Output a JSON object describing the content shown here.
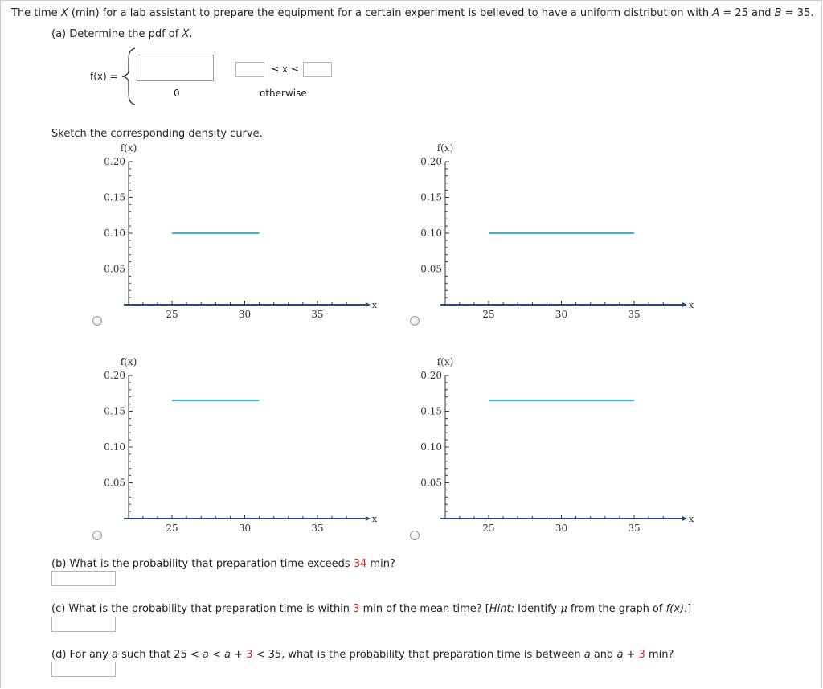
{
  "question": {
    "intro_a": "The time ",
    "intro_var": "X",
    "intro_b": " (min) for a lab assistant to prepare the equipment for a certain experiment is believed to have a uniform distribution with ",
    "intro_A": "A",
    "intro_c": " = 25 and ",
    "intro_B": "B",
    "intro_d": " = 35.",
    "part_a": "(a) Determine the pdf of ",
    "part_a_var": "X",
    "part_a_end": "."
  },
  "pdf": {
    "fx_label": "f(x)",
    "equals": " =",
    "ineq": "≤ x ≤",
    "zero": "0",
    "otherwise": "otherwise",
    "value_input": "",
    "lower_input": "",
    "upper_input": ""
  },
  "sketch_prompt": "Sketch the corresponding density curve.",
  "plots": [
    {
      "ylabel": "f(x)",
      "xlabel": "x",
      "yticks": [
        "0.20",
        "0.15",
        "0.10",
        "0.05"
      ],
      "xticks": [
        "25",
        "30",
        "35"
      ],
      "line_start": 25,
      "line_end": 31,
      "line_height": 0.1
    },
    {
      "ylabel": "f(x)",
      "xlabel": "x",
      "yticks": [
        "0.20",
        "0.15",
        "0.10",
        "0.05"
      ],
      "xticks": [
        "25",
        "30",
        "35"
      ],
      "line_start": 25,
      "line_end": 35,
      "line_height": 0.1
    },
    {
      "ylabel": "f(x)",
      "xlabel": "x",
      "yticks": [
        "0.20",
        "0.15",
        "0.10",
        "0.05"
      ],
      "xticks": [
        "25",
        "30",
        "35"
      ],
      "line_start": 25,
      "line_end": 31,
      "line_height": 0.165
    },
    {
      "ylabel": "f(x)",
      "xlabel": "x",
      "yticks": [
        "0.20",
        "0.15",
        "0.10",
        "0.05"
      ],
      "xticks": [
        "25",
        "30",
        "35"
      ],
      "line_start": 25,
      "line_end": 35,
      "line_height": 0.165
    }
  ],
  "part_b": {
    "a": "(b) What is the probability that preparation time exceeds ",
    "num": "34",
    "b": " min?",
    "answer": ""
  },
  "part_c": {
    "a": "(c) What is the probability that preparation time is within ",
    "num": "3",
    "b": " min of the mean time? [",
    "hint": "Hint:",
    "c": " Identify ",
    "mu": "μ",
    "d": " from the graph of ",
    "fx": "f(x)",
    "e": ".]",
    "answer": ""
  },
  "part_d": {
    "a": "(d) For any ",
    "av": "a",
    "b": " such that 25 < ",
    "av2": "a",
    "c": " < ",
    "av3": "a",
    "d": " + ",
    "num": "3",
    "e": " < 35, what is the probability that preparation time is between ",
    "av4": "a",
    "f": " and ",
    "av5": "a",
    "g": " + ",
    "num2": "3",
    "h": " min?",
    "answer": ""
  },
  "colors": {
    "curve": "#29b6e8",
    "axis": "#1f4e79",
    "text": "#222222",
    "highlight": "#e02020"
  }
}
